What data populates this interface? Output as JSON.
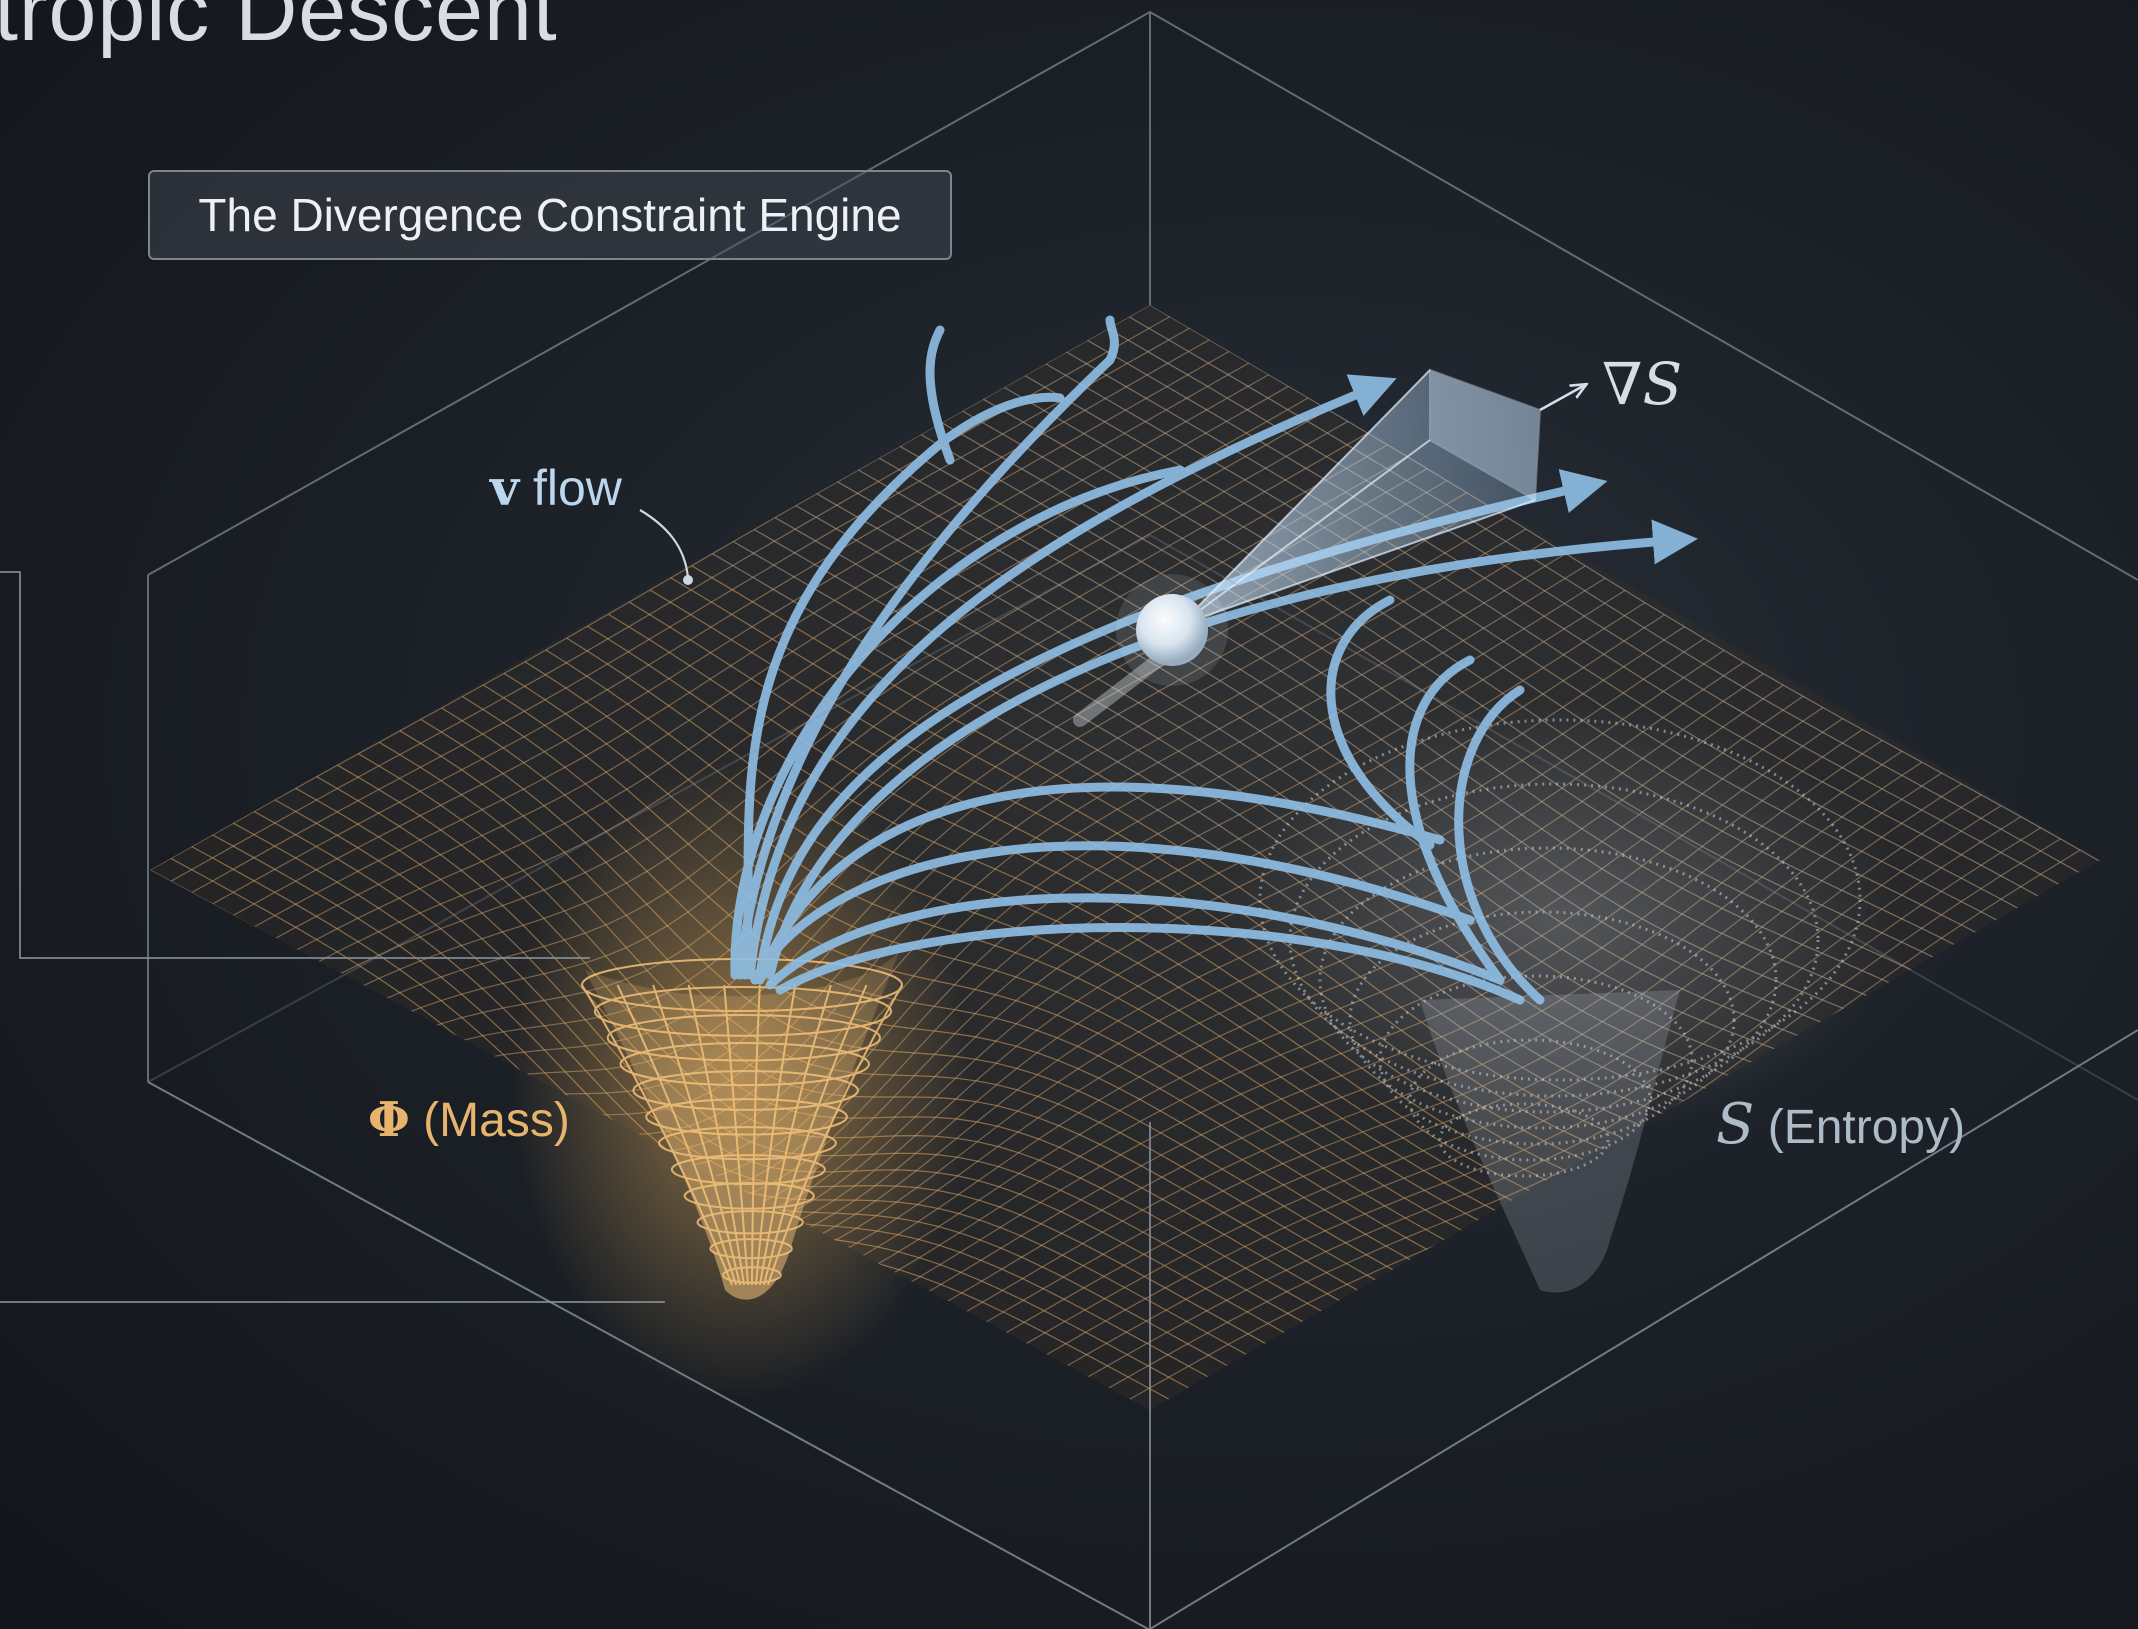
{
  "title": "tropic Descent",
  "engine_label": "The Divergence Constraint Engine",
  "labels": {
    "v_flow_symbol": "v",
    "v_flow_text": " flow",
    "grad_s": "∇S",
    "phi_symbol": "Φ",
    "phi_text": " (Mass)",
    "s_symbol": "S",
    "s_text": " (Entropy)"
  },
  "colors": {
    "background": "#1c2128",
    "mass_gold": "#e6b46c",
    "flow_blue": "#8fbfe6",
    "entropy_gray": "#aebcc8",
    "box_edge": "#8a929c"
  }
}
